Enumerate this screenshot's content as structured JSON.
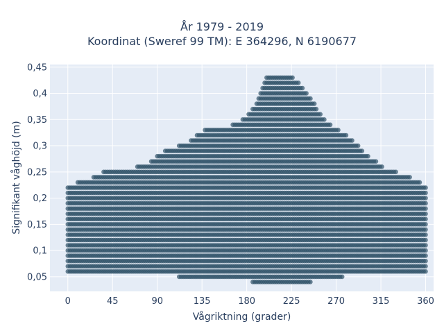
{
  "chart_data": {
    "type": "scatter",
    "title_line1": "År 1979 - 2019",
    "title_line2": "Koordinat (Sweref 99 TM): E 364296, N 6190677",
    "xlabel": "Vågriktning (grader)",
    "ylabel": "Signifikant våghöjd (m)",
    "xlim": [
      -18,
      368
    ],
    "ylim": [
      0.022,
      0.455
    ],
    "xticks": [
      0,
      45,
      90,
      135,
      180,
      225,
      270,
      315,
      360
    ],
    "xtick_labels": [
      "0",
      "45",
      "90",
      "135",
      "180",
      "225",
      "270",
      "315",
      "360"
    ],
    "yticks": [
      0.05,
      0.1,
      0.15,
      0.2,
      0.25,
      0.3,
      0.35,
      0.4,
      0.45
    ],
    "ytick_labels": [
      "0,05",
      "0,1",
      "0,15",
      "0,2",
      "0,25",
      "0,3",
      "0,35",
      "0,4",
      "0,45"
    ],
    "grid": true,
    "marker_color": "#2f5168",
    "plot_background": "#e5ecf6",
    "x_step_deg": 2,
    "y_step_m": 0.01,
    "envelope": {
      "x": [
        0,
        20,
        40,
        60,
        80,
        100,
        120,
        140,
        160,
        180,
        190,
        200,
        210,
        225,
        240,
        250,
        260,
        270,
        285,
        300,
        320,
        340,
        360
      ],
      "y_min": [
        0.06,
        0.06,
        0.06,
        0.06,
        0.06,
        0.06,
        0.05,
        0.05,
        0.05,
        0.05,
        0.04,
        0.04,
        0.04,
        0.04,
        0.04,
        0.05,
        0.05,
        0.05,
        0.06,
        0.06,
        0.06,
        0.06,
        0.06
      ],
      "y_max": [
        0.22,
        0.23,
        0.25,
        0.25,
        0.26,
        0.29,
        0.3,
        0.33,
        0.33,
        0.35,
        0.38,
        0.43,
        0.43,
        0.43,
        0.4,
        0.37,
        0.34,
        0.33,
        0.31,
        0.28,
        0.25,
        0.24,
        0.22
      ]
    }
  }
}
